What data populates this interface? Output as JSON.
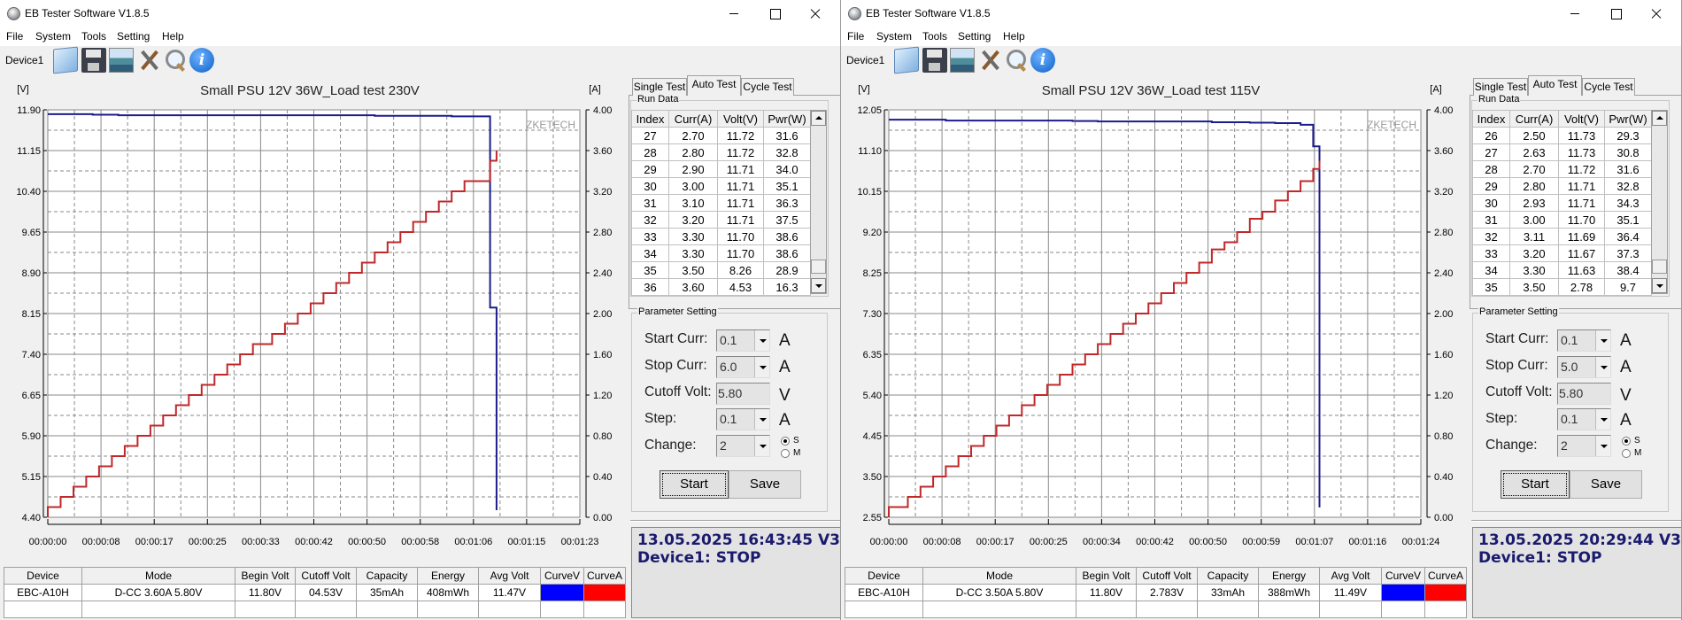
{
  "windows": [
    {
      "title": "EB Tester Software V1.8.5",
      "menu": [
        "File",
        "System",
        "Tools",
        "Setting",
        "Help"
      ],
      "toolbar": {
        "device_label": "Device1",
        "icons": [
          "folder-open-icon",
          "save-icon",
          "picture-icon",
          "tools-icon",
          "search-icon",
          "info-icon"
        ]
      },
      "tabs": [
        "Single Test",
        "Auto Test",
        "Cycle Test"
      ],
      "active_tab": "Auto Test",
      "run_data": {
        "title": "Run Data",
        "columns": [
          "Index",
          "Curr(A)",
          "Volt(V)",
          "Pwr(W)"
        ],
        "rows": [
          [
            "27",
            "2.70",
            "11.72",
            "31.6"
          ],
          [
            "28",
            "2.80",
            "11.72",
            "32.8"
          ],
          [
            "29",
            "2.90",
            "11.71",
            "34.0"
          ],
          [
            "30",
            "3.00",
            "11.71",
            "35.1"
          ],
          [
            "31",
            "3.10",
            "11.71",
            "36.3"
          ],
          [
            "32",
            "3.20",
            "11.71",
            "37.5"
          ],
          [
            "33",
            "3.30",
            "11.70",
            "38.6"
          ],
          [
            "34",
            "3.30",
            "11.70",
            "38.6"
          ],
          [
            "35",
            "3.50",
            "8.26",
            "28.9"
          ],
          [
            "36",
            "3.60",
            "4.53",
            "16.3"
          ]
        ]
      },
      "params": {
        "title": "Parameter Setting",
        "start_curr": {
          "label": "Start Curr:",
          "value": "0.1",
          "unit": "A"
        },
        "stop_curr": {
          "label": "Stop Curr:",
          "value": "6.0",
          "unit": "A"
        },
        "cutoff_volt": {
          "label": "Cutoff Volt:",
          "value": "5.80",
          "unit": "V"
        },
        "step": {
          "label": "Step:",
          "value": "0.1",
          "unit": "A"
        },
        "change": {
          "label": "Change:",
          "value": "2"
        },
        "radio_s": "S",
        "radio_m": "M",
        "radio_selected": "S",
        "start_button": "Start",
        "save_button": "Save"
      },
      "status": {
        "line1": "13.05.2025 16:43:45  V3.02",
        "line2": "Device1: STOP"
      },
      "summary": {
        "columns": [
          "Device",
          "Mode",
          "Begin Volt",
          "Cutoff Volt",
          "Capacity",
          "Energy",
          "Avg Volt",
          "CurveV",
          "CurveA"
        ],
        "values": [
          "EBC-A10H",
          "D-CC  3.60A  5.80V",
          "11.80V",
          "04.53V",
          "35mAh",
          "408mWh",
          "11.47V"
        ],
        "curve_v_color": "#0000ff",
        "curve_a_color": "#ff0000"
      }
    },
    {
      "title": "EB Tester Software V1.8.5",
      "menu": [
        "File",
        "System",
        "Tools",
        "Setting",
        "Help"
      ],
      "toolbar": {
        "device_label": "Device1",
        "icons": [
          "folder-open-icon",
          "save-icon",
          "picture-icon",
          "tools-icon",
          "search-icon",
          "info-icon"
        ]
      },
      "tabs": [
        "Single Test",
        "Auto Test",
        "Cycle Test"
      ],
      "active_tab": "Auto Test",
      "run_data": {
        "title": "Run Data",
        "columns": [
          "Index",
          "Curr(A)",
          "Volt(V)",
          "Pwr(W)"
        ],
        "rows": [
          [
            "26",
            "2.50",
            "11.73",
            "29.3"
          ],
          [
            "27",
            "2.63",
            "11.73",
            "30.8"
          ],
          [
            "28",
            "2.70",
            "11.72",
            "31.6"
          ],
          [
            "29",
            "2.80",
            "11.71",
            "32.8"
          ],
          [
            "30",
            "2.93",
            "11.71",
            "34.3"
          ],
          [
            "31",
            "3.00",
            "11.70",
            "35.1"
          ],
          [
            "32",
            "3.11",
            "11.69",
            "36.4"
          ],
          [
            "33",
            "3.20",
            "11.67",
            "37.3"
          ],
          [
            "34",
            "3.30",
            "11.63",
            "38.4"
          ],
          [
            "35",
            "3.50",
            "2.78",
            "9.7"
          ]
        ]
      },
      "params": {
        "title": "Parameter Setting",
        "start_curr": {
          "label": "Start Curr:",
          "value": "0.1",
          "unit": "A"
        },
        "stop_curr": {
          "label": "Stop Curr:",
          "value": "5.0",
          "unit": "A"
        },
        "cutoff_volt": {
          "label": "Cutoff Volt:",
          "value": "5.80",
          "unit": "V"
        },
        "step": {
          "label": "Step:",
          "value": "0.1",
          "unit": "A"
        },
        "change": {
          "label": "Change:",
          "value": "2"
        },
        "radio_s": "S",
        "radio_m": "M",
        "radio_selected": "S",
        "start_button": "Start",
        "save_button": "Save"
      },
      "status": {
        "line1": "13.05.2025 20:29:44  V3.02",
        "line2": "Device1: STOP"
      },
      "summary": {
        "columns": [
          "Device",
          "Mode",
          "Begin Volt",
          "Cutoff Volt",
          "Capacity",
          "Energy",
          "Avg Volt",
          "CurveV",
          "CurveA"
        ],
        "values": [
          "EBC-A10H",
          "D-CC  3.50A  5.80V",
          "11.80V",
          "2.783V",
          "33mAh",
          "388mWh",
          "11.49V"
        ],
        "curve_v_color": "#0000ff",
        "curve_a_color": "#ff0000"
      }
    }
  ],
  "chart_data": [
    {
      "type": "line",
      "title": "Small PSU 12V 36W_Load test 230V",
      "y_label": "[V]",
      "y2_label": "[A]",
      "watermark": "ZKETECH",
      "xlim": [
        "00:00:00",
        "00:01:23"
      ],
      "x_ticks": [
        "00:00:00",
        "00:00:08",
        "00:00:17",
        "00:00:25",
        "00:00:33",
        "00:00:42",
        "00:00:50",
        "00:00:58",
        "00:01:06",
        "00:01:15",
        "00:01:23"
      ],
      "ylim": [
        4.4,
        11.9
      ],
      "y_ticks": [
        "4.40",
        "5.15",
        "5.90",
        "6.65",
        "7.40",
        "8.15",
        "8.90",
        "9.65",
        "10.40",
        "11.15",
        "11.90"
      ],
      "y2lim": [
        0,
        4
      ],
      "y2_ticks": [
        "0.00",
        "0.40",
        "0.80",
        "1.20",
        "1.60",
        "2.00",
        "2.40",
        "2.80",
        "3.20",
        "3.60",
        "4.00"
      ],
      "grid": true,
      "series": [
        {
          "axis": "left",
          "color": "#1c1c8c",
          "points": [
            [
              "00:00:00",
              11.82
            ],
            [
              "00:00:07",
              11.81
            ],
            [
              "00:00:11",
              11.8
            ],
            [
              "00:00:51",
              11.79
            ],
            [
              "00:01:03",
              11.78
            ],
            [
              "00:01:09",
              8.26
            ],
            [
              "00:01:10",
              4.53
            ]
          ]
        },
        {
          "axis": "right",
          "color": "#c0282a",
          "points": [
            [
              "00:00:00",
              0.1
            ],
            [
              "00:00:02",
              0.2
            ],
            [
              "00:00:04",
              0.3
            ],
            [
              "00:00:06",
              0.4
            ],
            [
              "00:00:08",
              0.5
            ],
            [
              "00:00:10",
              0.6
            ],
            [
              "00:00:12",
              0.7
            ],
            [
              "00:00:14",
              0.8
            ],
            [
              "00:00:16",
              0.9
            ],
            [
              "00:00:18",
              1.0
            ],
            [
              "00:00:20",
              1.1
            ],
            [
              "00:00:22",
              1.2
            ],
            [
              "00:00:24",
              1.3
            ],
            [
              "00:00:26",
              1.4
            ],
            [
              "00:00:28",
              1.5
            ],
            [
              "00:00:30",
              1.6
            ],
            [
              "00:00:32",
              1.7
            ],
            [
              "00:00:35",
              1.8
            ],
            [
              "00:00:37",
              1.9
            ],
            [
              "00:00:39",
              2.0
            ],
            [
              "00:00:41",
              2.1
            ],
            [
              "00:00:43",
              2.2
            ],
            [
              "00:00:45",
              2.3
            ],
            [
              "00:00:47",
              2.4
            ],
            [
              "00:00:49",
              2.5
            ],
            [
              "00:00:51",
              2.6
            ],
            [
              "00:00:53",
              2.7
            ],
            [
              "00:00:55",
              2.8
            ],
            [
              "00:00:57",
              2.9
            ],
            [
              "00:00:59",
              3.0
            ],
            [
              "00:01:01",
              3.1
            ],
            [
              "00:01:03",
              3.2
            ],
            [
              "00:01:05",
              3.3
            ],
            [
              "00:01:09",
              3.5
            ],
            [
              "00:01:10",
              3.6
            ]
          ]
        }
      ]
    },
    {
      "type": "line",
      "title": "Small PSU 12V 36W_Load test 115V",
      "y_label": "[V]",
      "y2_label": "[A]",
      "watermark": "ZKETECH",
      "xlim": [
        "00:00:00",
        "00:01:24"
      ],
      "x_ticks": [
        "00:00:00",
        "00:00:08",
        "00:00:17",
        "00:00:25",
        "00:00:34",
        "00:00:42",
        "00:00:50",
        "00:00:59",
        "00:01:07",
        "00:01:16",
        "00:01:24"
      ],
      "ylim": [
        2.55,
        12.05
      ],
      "y_ticks": [
        "2.55",
        "3.50",
        "4.45",
        "5.40",
        "6.35",
        "7.30",
        "8.25",
        "9.20",
        "10.15",
        "11.10",
        "12.05"
      ],
      "y2lim": [
        0,
        4
      ],
      "y2_ticks": [
        "0.00",
        "0.40",
        "0.80",
        "1.20",
        "1.60",
        "2.00",
        "2.40",
        "2.80",
        "3.20",
        "3.60",
        "4.00"
      ],
      "grid": true,
      "series": [
        {
          "axis": "left",
          "color": "#1c1c8c",
          "points": [
            [
              "00:00:00",
              11.82
            ],
            [
              "00:00:09",
              11.8
            ],
            [
              "00:00:29",
              11.79
            ],
            [
              "00:00:33",
              11.78
            ],
            [
              "00:00:51",
              11.76
            ],
            [
              "00:00:57",
              11.75
            ],
            [
              "00:01:01",
              11.74
            ],
            [
              "00:01:05",
              11.7
            ],
            [
              "00:01:07",
              11.2
            ],
            [
              "00:01:08",
              2.78
            ]
          ]
        },
        {
          "axis": "right",
          "color": "#c0282a",
          "points": [
            [
              "00:00:00",
              0.1
            ],
            [
              "00:00:03",
              0.2
            ],
            [
              "00:00:05",
              0.3
            ],
            [
              "00:00:07",
              0.4
            ],
            [
              "00:00:09",
              0.5
            ],
            [
              "00:00:11",
              0.6
            ],
            [
              "00:00:13",
              0.7
            ],
            [
              "00:00:15",
              0.8
            ],
            [
              "00:00:17",
              0.9
            ],
            [
              "00:00:19",
              1.0
            ],
            [
              "00:00:21",
              1.1
            ],
            [
              "00:00:23",
              1.2
            ],
            [
              "00:00:25",
              1.3
            ],
            [
              "00:00:27",
              1.4
            ],
            [
              "00:00:29",
              1.5
            ],
            [
              "00:00:31",
              1.6
            ],
            [
              "00:00:33",
              1.7
            ],
            [
              "00:00:35",
              1.8
            ],
            [
              "00:00:37",
              1.9
            ],
            [
              "00:00:39",
              2.0
            ],
            [
              "00:00:41",
              2.1
            ],
            [
              "00:00:43",
              2.2
            ],
            [
              "00:00:45",
              2.3
            ],
            [
              "00:00:47",
              2.4
            ],
            [
              "00:00:49",
              2.5
            ],
            [
              "00:00:51",
              2.63
            ],
            [
              "00:00:53",
              2.7
            ],
            [
              "00:00:55",
              2.8
            ],
            [
              "00:00:57",
              2.93
            ],
            [
              "00:00:59",
              3.0
            ],
            [
              "00:01:01",
              3.11
            ],
            [
              "00:01:03",
              3.2
            ],
            [
              "00:01:05",
              3.3
            ],
            [
              "00:01:07",
              3.42
            ],
            [
              "00:01:08",
              3.5
            ]
          ]
        }
      ]
    }
  ]
}
